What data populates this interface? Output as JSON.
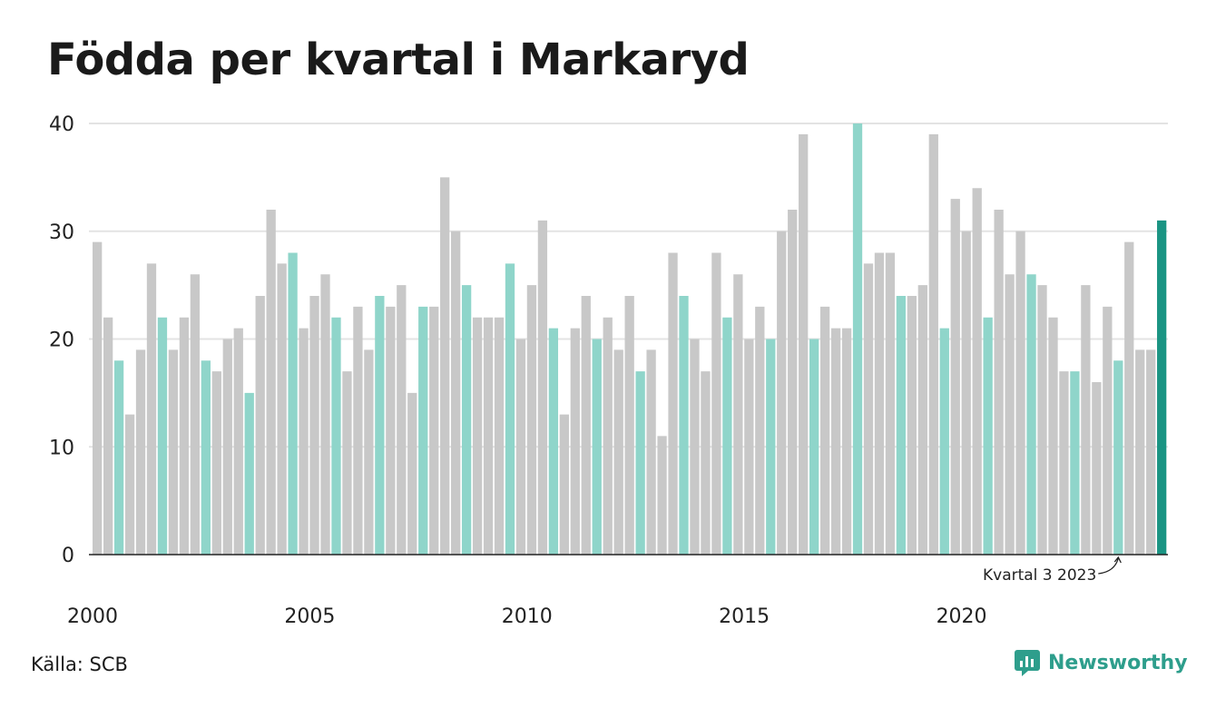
{
  "title": "Födda per kvartal i Markaryd",
  "source": "Källa: SCB",
  "brand": "Newsworthy",
  "colors": {
    "bar_default": "#c8c8c8",
    "bar_q3": "#8fd5ca",
    "bar_highlight": "#1a9483",
    "grid": "#e3e3e3",
    "axis": "#222222",
    "brand": "#2e9e8c"
  },
  "chart_data": {
    "type": "bar",
    "title": "Födda per kvartal i Markaryd",
    "xlabel": "",
    "ylabel": "",
    "ylim": [
      0,
      40
    ],
    "yticks": [
      0,
      10,
      20,
      30,
      40
    ],
    "grid": true,
    "legend": "none",
    "x_tick_labels": [
      "2000",
      "2005",
      "2010",
      "2015",
      "2020"
    ],
    "start_year": 2000,
    "quarter_highlight": 3,
    "annotation": "Kvartal 3 2023",
    "values": [
      29,
      22,
      18,
      13,
      19,
      27,
      22,
      19,
      22,
      26,
      18,
      17,
      20,
      21,
      15,
      24,
      32,
      27,
      28,
      21,
      24,
      26,
      22,
      17,
      23,
      19,
      24,
      23,
      25,
      15,
      23,
      23,
      35,
      30,
      25,
      22,
      22,
      22,
      27,
      20,
      25,
      31,
      21,
      13,
      21,
      24,
      20,
      22,
      19,
      24,
      17,
      19,
      11,
      28,
      24,
      20,
      17,
      28,
      22,
      26,
      20,
      23,
      20,
      30,
      32,
      39,
      20,
      23,
      21,
      21,
      40,
      27,
      28,
      28,
      24,
      24,
      25,
      39,
      21,
      33,
      30,
      34,
      22,
      32,
      26,
      30,
      26,
      25,
      22,
      17,
      17,
      25,
      16,
      23,
      18,
      29,
      19,
      19,
      31
    ]
  }
}
